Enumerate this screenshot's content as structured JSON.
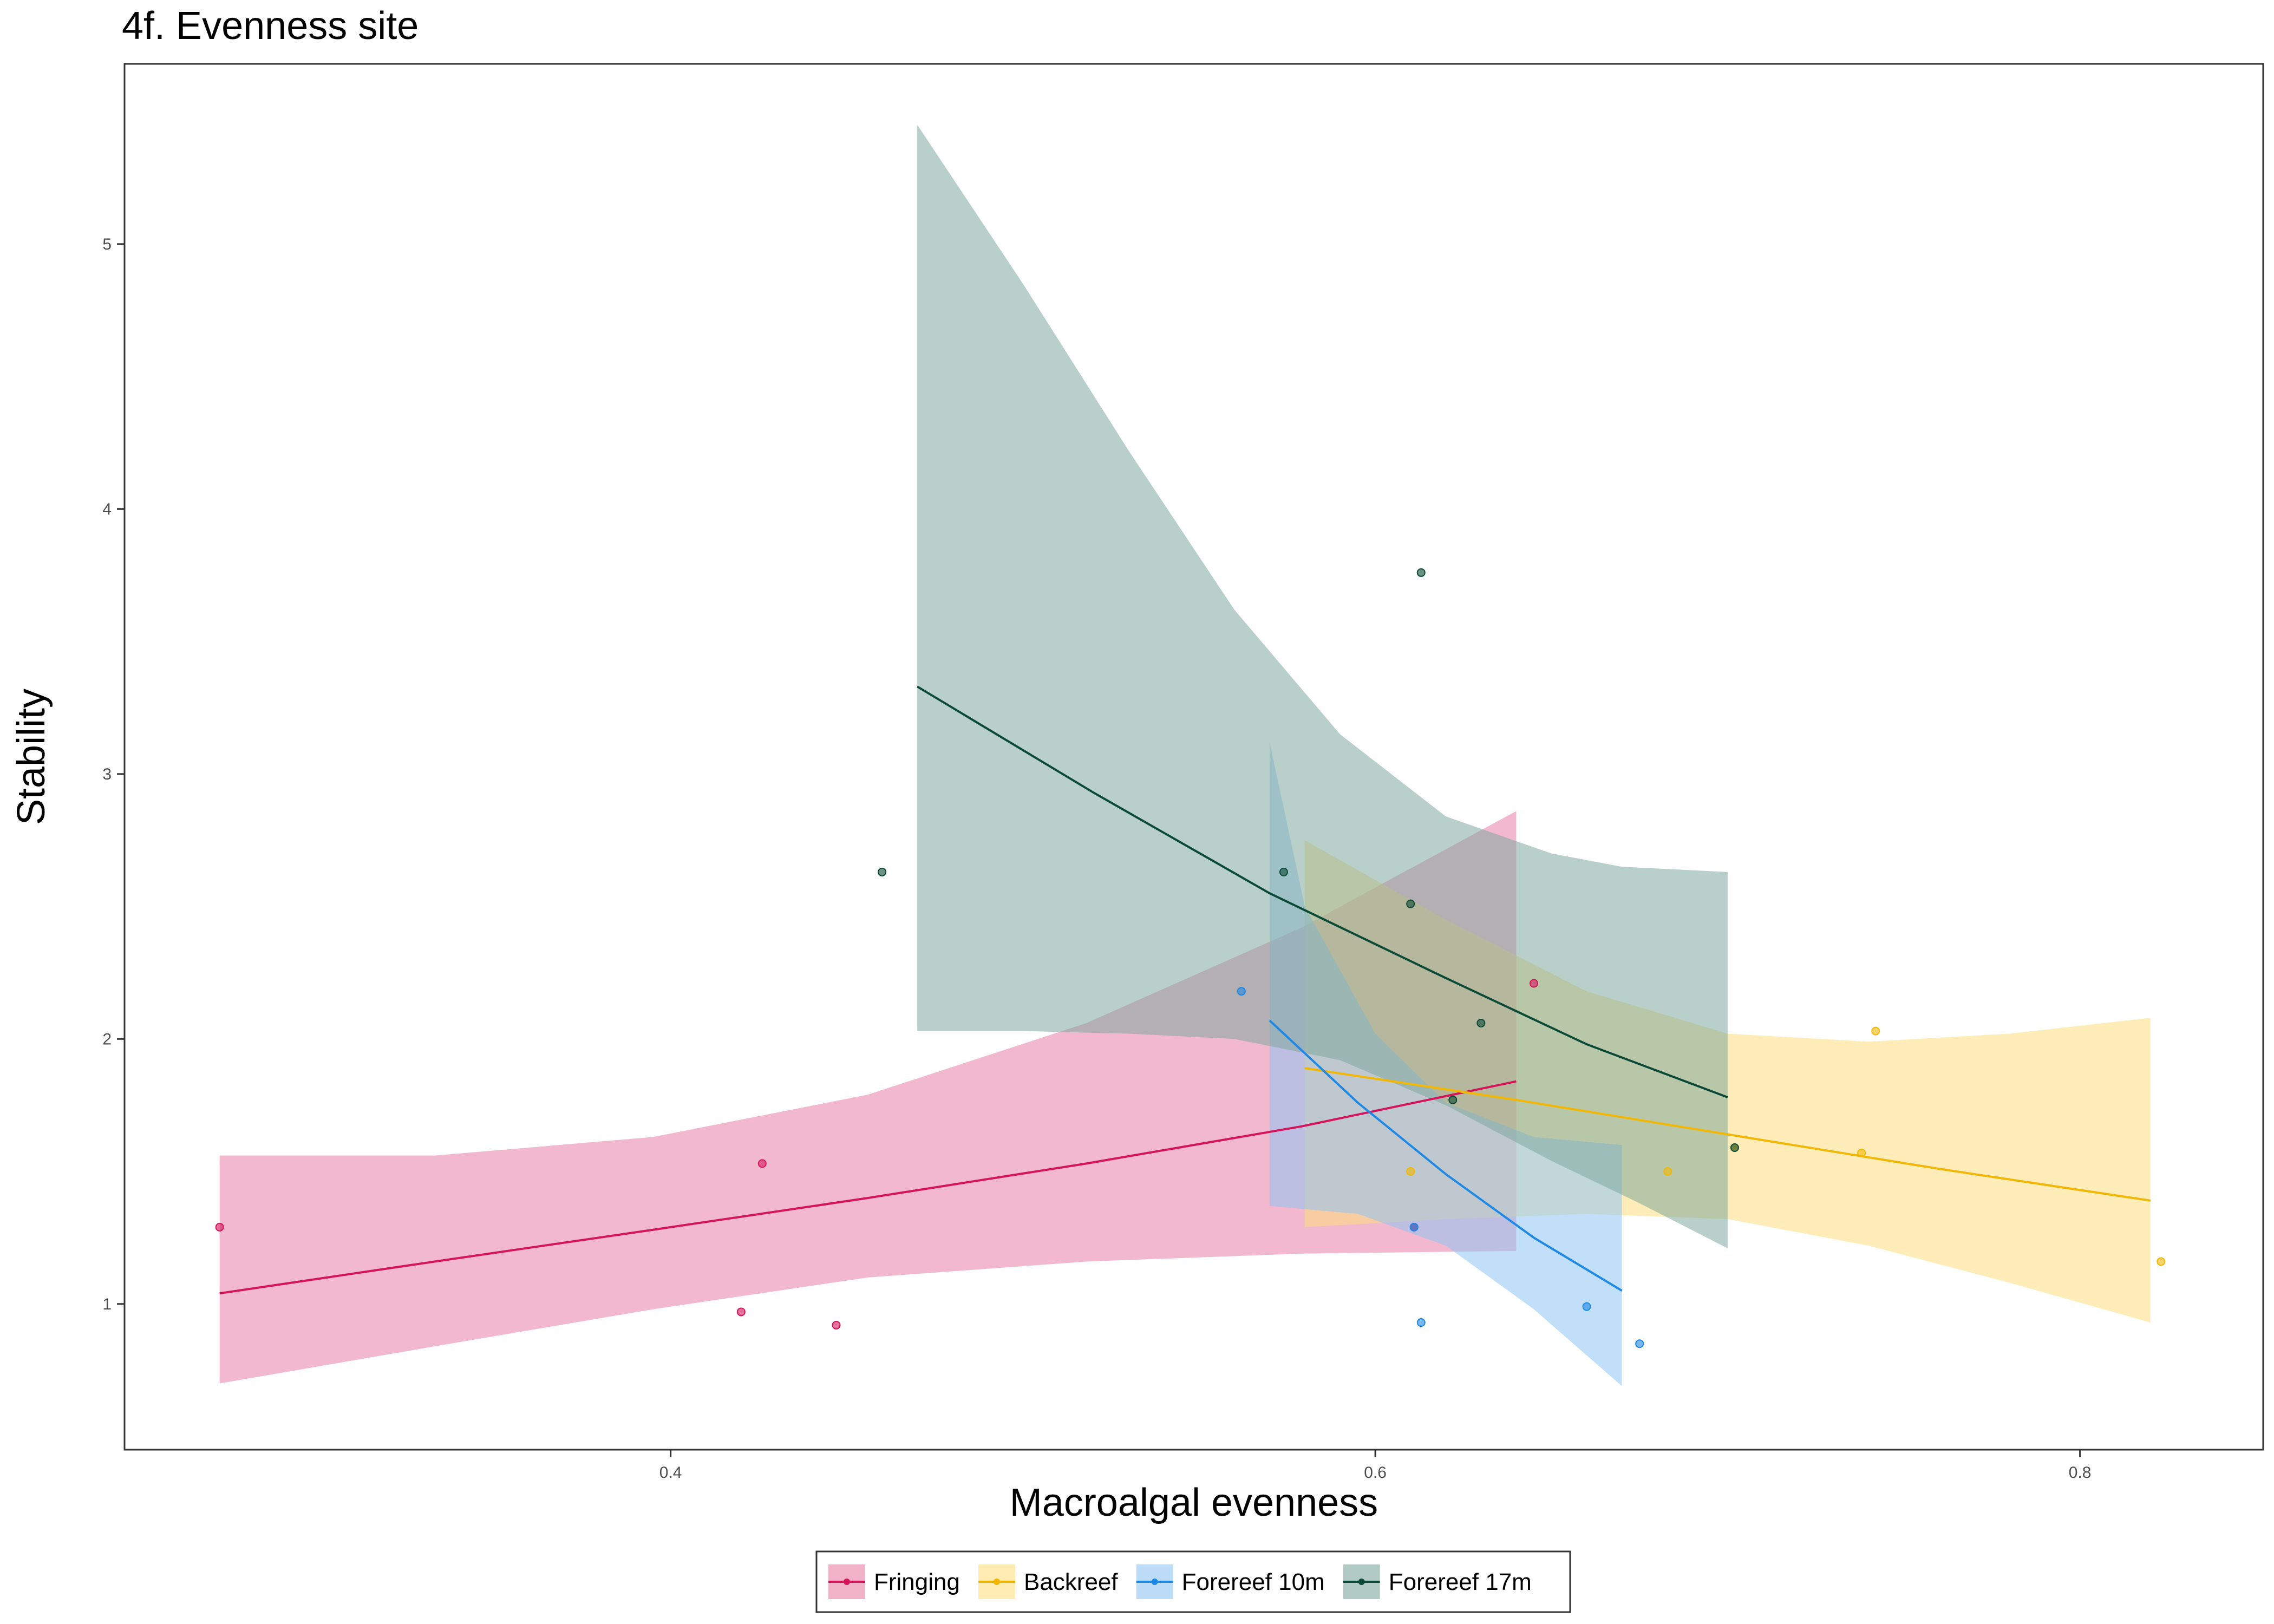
{
  "chart_data": {
    "type": "scatter",
    "title": "4f. Evenness site",
    "xlabel": "Macroalgal evenness",
    "ylabel": "Stability",
    "xlim": [
      0.245,
      0.852
    ],
    "ylim": [
      0.45,
      5.68
    ],
    "x_ticks": [
      {
        "value": 0.4,
        "label": "0.4"
      },
      {
        "value": 0.6,
        "label": "0.6"
      },
      {
        "value": 0.8,
        "label": "0.8"
      }
    ],
    "y_ticks": [
      {
        "value": 1,
        "label": "1"
      },
      {
        "value": 2,
        "label": "2"
      },
      {
        "value": 3,
        "label": "3"
      },
      {
        "value": 4,
        "label": "4"
      },
      {
        "value": 5,
        "label": "5"
      }
    ],
    "grid": false,
    "legend_position": "bottom",
    "series": [
      {
        "name": "Fringing",
        "color": "#d6145a",
        "fill_color": "#e87ea4",
        "points": [
          {
            "x": 0.272,
            "y": 1.29
          },
          {
            "x": 0.42,
            "y": 0.97
          },
          {
            "x": 0.426,
            "y": 1.53
          },
          {
            "x": 0.447,
            "y": 0.92
          },
          {
            "x": 0.611,
            "y": 1.29
          },
          {
            "x": 0.645,
            "y": 2.21
          }
        ],
        "fit": [
          {
            "x": 0.272,
            "y": 1.04
          },
          {
            "x": 0.333,
            "y": 1.16
          },
          {
            "x": 0.395,
            "y": 1.28
          },
          {
            "x": 0.456,
            "y": 1.4
          },
          {
            "x": 0.518,
            "y": 1.53
          },
          {
            "x": 0.579,
            "y": 1.67
          },
          {
            "x": 0.64,
            "y": 1.84
          }
        ],
        "band_upper": [
          {
            "x": 0.272,
            "y": 1.56
          },
          {
            "x": 0.333,
            "y": 1.56
          },
          {
            "x": 0.395,
            "y": 1.63
          },
          {
            "x": 0.456,
            "y": 1.79
          },
          {
            "x": 0.518,
            "y": 2.06
          },
          {
            "x": 0.579,
            "y": 2.42
          },
          {
            "x": 0.64,
            "y": 2.86
          }
        ],
        "band_lower": [
          {
            "x": 0.272,
            "y": 0.7
          },
          {
            "x": 0.333,
            "y": 0.84
          },
          {
            "x": 0.395,
            "y": 0.98
          },
          {
            "x": 0.456,
            "y": 1.1
          },
          {
            "x": 0.518,
            "y": 1.16
          },
          {
            "x": 0.579,
            "y": 1.19
          },
          {
            "x": 0.64,
            "y": 1.2
          }
        ]
      },
      {
        "name": "Backreef",
        "color": "#f2b705",
        "fill_color": "#fddf7e",
        "points": [
          {
            "x": 0.61,
            "y": 1.5
          },
          {
            "x": 0.683,
            "y": 1.5
          },
          {
            "x": 0.702,
            "y": 1.59
          },
          {
            "x": 0.738,
            "y": 1.57
          },
          {
            "x": 0.742,
            "y": 2.03
          },
          {
            "x": 0.823,
            "y": 1.16
          }
        ],
        "fit": [
          {
            "x": 0.58,
            "y": 1.89
          },
          {
            "x": 0.64,
            "y": 1.77
          },
          {
            "x": 0.7,
            "y": 1.64
          },
          {
            "x": 0.76,
            "y": 1.51
          },
          {
            "x": 0.82,
            "y": 1.39
          }
        ],
        "band_upper": [
          {
            "x": 0.58,
            "y": 2.75
          },
          {
            "x": 0.62,
            "y": 2.45
          },
          {
            "x": 0.66,
            "y": 2.18
          },
          {
            "x": 0.7,
            "y": 2.02
          },
          {
            "x": 0.74,
            "y": 1.99
          },
          {
            "x": 0.78,
            "y": 2.02
          },
          {
            "x": 0.82,
            "y": 2.08
          }
        ],
        "band_lower": [
          {
            "x": 0.58,
            "y": 1.29
          },
          {
            "x": 0.62,
            "y": 1.32
          },
          {
            "x": 0.66,
            "y": 1.34
          },
          {
            "x": 0.7,
            "y": 1.32
          },
          {
            "x": 0.74,
            "y": 1.22
          },
          {
            "x": 0.78,
            "y": 1.08
          },
          {
            "x": 0.82,
            "y": 0.93
          }
        ]
      },
      {
        "name": "Forereef 10m",
        "color": "#1e88e5",
        "fill_color": "#90c4f4",
        "points": [
          {
            "x": 0.562,
            "y": 2.18
          },
          {
            "x": 0.611,
            "y": 1.29
          },
          {
            "x": 0.613,
            "y": 0.93
          },
          {
            "x": 0.66,
            "y": 0.99
          },
          {
            "x": 0.675,
            "y": 0.85
          }
        ],
        "fit": [
          {
            "x": 0.57,
            "y": 2.07
          },
          {
            "x": 0.595,
            "y": 1.76
          },
          {
            "x": 0.62,
            "y": 1.49
          },
          {
            "x": 0.645,
            "y": 1.25
          },
          {
            "x": 0.67,
            "y": 1.05
          }
        ],
        "band_upper": [
          {
            "x": 0.57,
            "y": 3.12
          },
          {
            "x": 0.58,
            "y": 2.5
          },
          {
            "x": 0.6,
            "y": 2.02
          },
          {
            "x": 0.62,
            "y": 1.76
          },
          {
            "x": 0.645,
            "y": 1.63
          },
          {
            "x": 0.67,
            "y": 1.6
          }
        ],
        "band_lower": [
          {
            "x": 0.57,
            "y": 1.37
          },
          {
            "x": 0.595,
            "y": 1.34
          },
          {
            "x": 0.62,
            "y": 1.22
          },
          {
            "x": 0.645,
            "y": 0.98
          },
          {
            "x": 0.67,
            "y": 0.69
          }
        ]
      },
      {
        "name": "Forereef 17m",
        "color": "#0b4a36",
        "fill_color": "#7fa79c",
        "points": [
          {
            "x": 0.46,
            "y": 2.63
          },
          {
            "x": 0.574,
            "y": 2.63
          },
          {
            "x": 0.61,
            "y": 2.51
          },
          {
            "x": 0.613,
            "y": 3.76
          },
          {
            "x": 0.622,
            "y": 1.77
          },
          {
            "x": 0.63,
            "y": 2.06
          },
          {
            "x": 0.702,
            "y": 1.59
          }
        ],
        "fit": [
          {
            "x": 0.47,
            "y": 3.33
          },
          {
            "x": 0.52,
            "y": 2.93
          },
          {
            "x": 0.57,
            "y": 2.55
          },
          {
            "x": 0.62,
            "y": 2.23
          },
          {
            "x": 0.66,
            "y": 1.98
          },
          {
            "x": 0.7,
            "y": 1.78
          }
        ],
        "band_upper": [
          {
            "x": 0.47,
            "y": 5.45
          },
          {
            "x": 0.5,
            "y": 4.85
          },
          {
            "x": 0.53,
            "y": 4.22
          },
          {
            "x": 0.56,
            "y": 3.62
          },
          {
            "x": 0.59,
            "y": 3.15
          },
          {
            "x": 0.62,
            "y": 2.84
          },
          {
            "x": 0.65,
            "y": 2.7
          },
          {
            "x": 0.67,
            "y": 2.65
          },
          {
            "x": 0.7,
            "y": 2.63
          }
        ],
        "band_lower": [
          {
            "x": 0.47,
            "y": 2.03
          },
          {
            "x": 0.5,
            "y": 2.03
          },
          {
            "x": 0.53,
            "y": 2.02
          },
          {
            "x": 0.56,
            "y": 2.0
          },
          {
            "x": 0.59,
            "y": 1.92
          },
          {
            "x": 0.62,
            "y": 1.75
          },
          {
            "x": 0.65,
            "y": 1.54
          },
          {
            "x": 0.675,
            "y": 1.38
          },
          {
            "x": 0.7,
            "y": 1.21
          }
        ]
      }
    ]
  }
}
